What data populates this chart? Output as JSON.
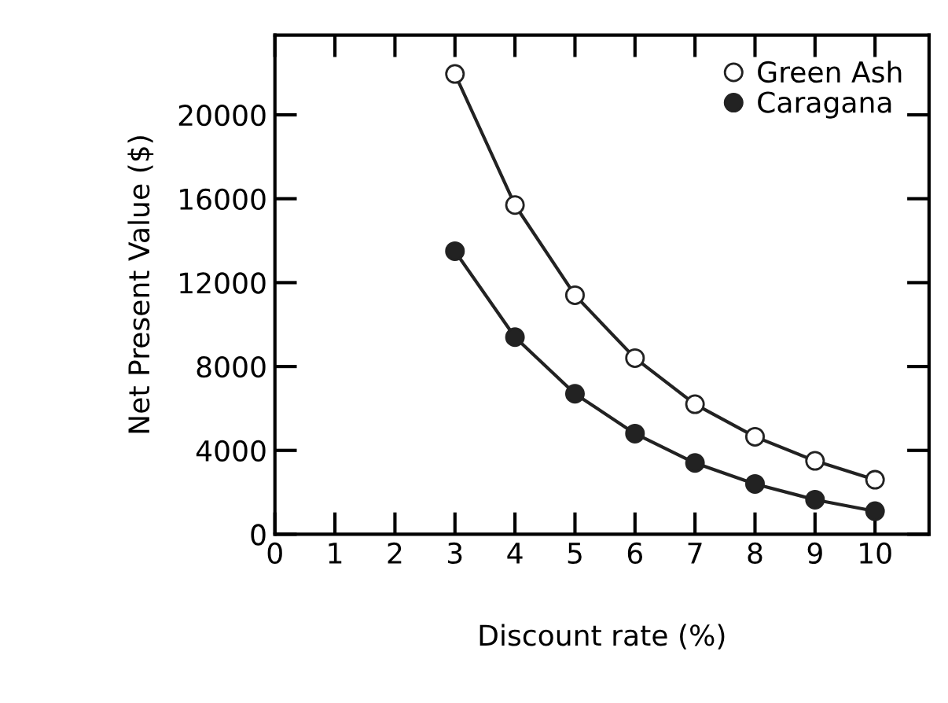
{
  "chart_data": {
    "type": "line",
    "xlabel": "Discount rate (%)",
    "ylabel": "Net Present Value ($)",
    "x": [
      3,
      4,
      5,
      6,
      7,
      8,
      9,
      10
    ],
    "series": [
      {
        "name": "Green Ash",
        "color": "#222222",
        "marker": "circle",
        "values": [
          21950,
          15700,
          11400,
          8400,
          6200,
          4650,
          3500,
          2600
        ]
      },
      {
        "name": "Caragana",
        "color": "#222222",
        "marker": "circle",
        "values": [
          13500,
          9400,
          6700,
          4800,
          3400,
          2400,
          1650,
          1100
        ]
      }
    ],
    "xlim": [
      0,
      10.9
    ],
    "xticks": [
      0,
      1,
      2,
      3,
      4,
      5,
      6,
      7,
      8,
      9,
      10
    ],
    "ylim": [
      0,
      23800
    ],
    "yticks": [
      0,
      4000,
      8000,
      12000,
      16000,
      20000
    ],
    "grid": false,
    "legend": "top right",
    "line_style": "solid"
  }
}
